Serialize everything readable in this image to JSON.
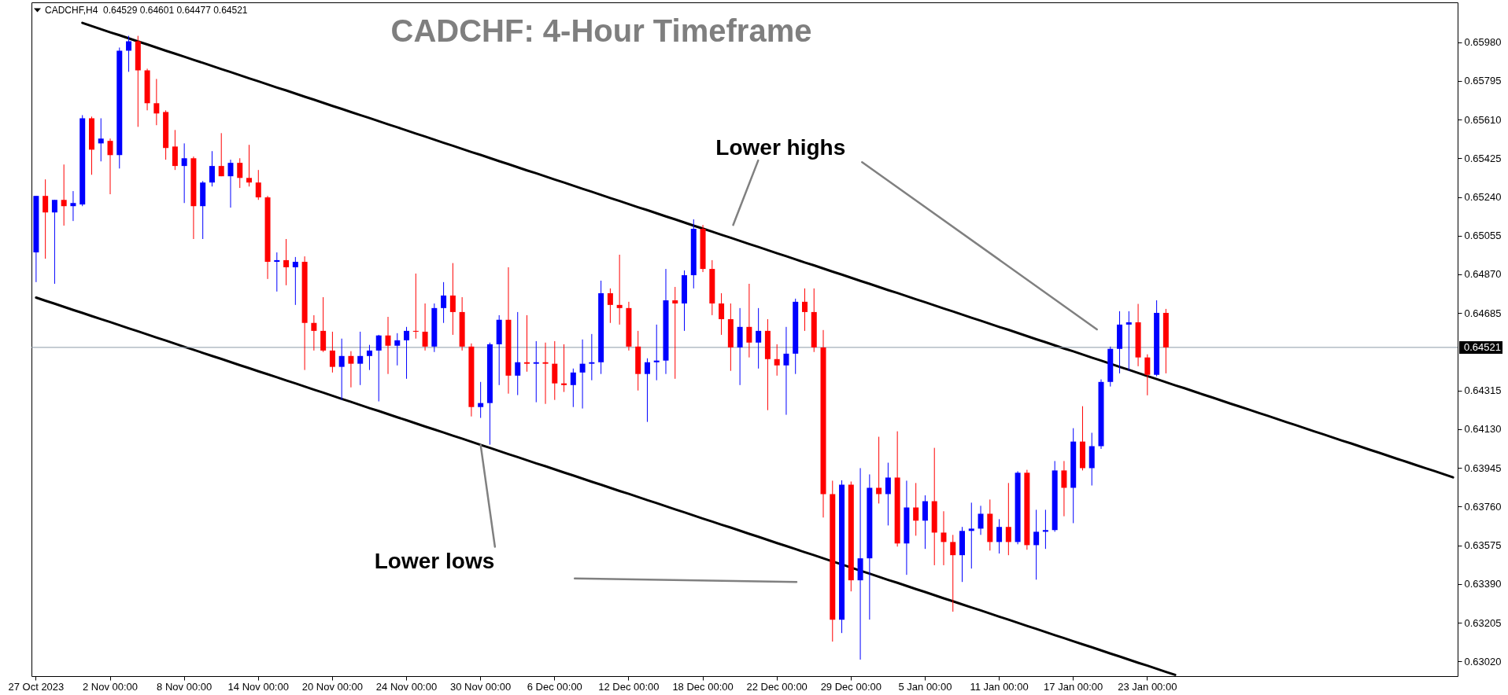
{
  "chart_data": {
    "type": "candlestick",
    "title": "CADCHF: 4-Hour Timeframe",
    "annotations": [
      "CADCHF,H4  0.64529 0.64601 0.64477 0.64521",
      "Lower highs",
      {
        "text": "Lower lows",
        "x": "30 Nov 00:00",
        "y": 0.64055
      }
    ],
    "categories": [
      "27 Oct 2023",
      null,
      null,
      null,
      null,
      null,
      null,
      null,
      "2 Nov 00:00",
      null,
      null,
      null,
      null,
      null,
      null,
      null,
      "8 Nov 00:00",
      null,
      null,
      null,
      null,
      null,
      null,
      null,
      "14 Nov 00:00",
      null,
      null,
      null,
      null,
      null,
      null,
      null,
      "20 Nov 00:00",
      null,
      null,
      null,
      null,
      null,
      null,
      null,
      "24 Nov 00:00",
      null,
      null,
      null,
      null,
      null,
      null,
      null,
      "30 Nov 00:00",
      null,
      null,
      null,
      null,
      null,
      null,
      null,
      "6 Dec 00:00",
      null,
      null,
      null,
      null,
      null,
      null,
      null,
      "12 Dec 00:00",
      null,
      null,
      null,
      null,
      null,
      null,
      null,
      "18 Dec 00:00",
      null,
      null,
      null,
      null,
      null,
      null,
      null,
      "22 Dec 00:00",
      null,
      null,
      null,
      null,
      null,
      null,
      null,
      "29 Dec 00:00",
      null,
      null,
      null,
      null,
      null,
      null,
      null,
      "5 Jan 00:00",
      null,
      null,
      null,
      null,
      null,
      null,
      null,
      "11 Jan 00:00",
      null,
      null,
      null,
      null,
      null,
      null,
      null,
      "17 Jan 00:00",
      null,
      null,
      null,
      null,
      null,
      null,
      null,
      "23 Jan 00:00",
      null,
      null,
      null,
      null,
      null,
      null,
      null,
      null,
      null,
      null,
      null,
      null,
      null,
      null,
      null,
      null,
      null,
      null,
      null,
      null,
      null,
      null,
      null,
      null,
      null,
      null,
      null,
      null,
      null,
      null,
      null,
      null,
      null
    ],
    "ohlc": [
      [
        0.64975,
        0.65245,
        0.64833,
        0.65245
      ],
      [
        0.65245,
        0.65324,
        0.64945,
        0.65166
      ],
      [
        0.65166,
        0.65226,
        0.64825,
        0.65226
      ],
      [
        0.65226,
        0.65395,
        0.65103,
        0.65196
      ],
      [
        0.65196,
        0.65268,
        0.65125,
        0.65211
      ],
      [
        0.65204,
        0.65631,
        0.65196,
        0.65616
      ],
      [
        0.65616,
        0.65624,
        0.65346,
        0.65466
      ],
      [
        0.65496,
        0.65616,
        0.6541,
        0.65519
      ],
      [
        0.65508,
        0.65519,
        0.65253,
        0.6544
      ],
      [
        0.6544,
        0.65954,
        0.65376,
        0.65939
      ],
      [
        0.65939,
        0.6601,
        0.65838,
        0.65984
      ],
      [
        0.65984,
        0.6601,
        0.65575,
        0.65845
      ],
      [
        0.65845,
        0.65853,
        0.65654,
        0.65688
      ],
      [
        0.65688,
        0.65804,
        0.65583,
        0.65639
      ],
      [
        0.65646,
        0.65654,
        0.65418,
        0.65474
      ],
      [
        0.65481,
        0.6556,
        0.65369,
        0.65388
      ],
      [
        0.65388,
        0.65496,
        0.65211,
        0.65425
      ],
      [
        0.65425,
        0.65433,
        0.65039,
        0.65196
      ],
      [
        0.65196,
        0.65316,
        0.65039,
        0.65309
      ],
      [
        0.65309,
        0.65459,
        0.6529,
        0.65388
      ],
      [
        0.65388,
        0.65545,
        0.65339,
        0.65339
      ],
      [
        0.65339,
        0.65418,
        0.65189,
        0.65403
      ],
      [
        0.65403,
        0.65425,
        0.65283,
        0.65331
      ],
      [
        0.65331,
        0.65489,
        0.6529,
        0.65309
      ],
      [
        0.65309,
        0.65369,
        0.65226,
        0.65238
      ],
      [
        0.65238,
        0.65245,
        0.64848,
        0.6493
      ],
      [
        0.6493,
        0.64975,
        0.64788,
        0.64938
      ],
      [
        0.64938,
        0.65039,
        0.64818,
        0.64904
      ],
      [
        0.64904,
        0.64953,
        0.64724,
        0.6493
      ],
      [
        0.6493,
        0.64956,
        0.64413,
        0.64638
      ],
      [
        0.64638,
        0.64675,
        0.64506,
        0.646
      ],
      [
        0.646,
        0.64761,
        0.64499,
        0.64506
      ],
      [
        0.64506,
        0.64596,
        0.64401,
        0.64428
      ],
      [
        0.64428,
        0.64563,
        0.6427,
        0.6448
      ],
      [
        0.6448,
        0.64503,
        0.6433,
        0.64443
      ],
      [
        0.64443,
        0.64596,
        0.64341,
        0.6448
      ],
      [
        0.6448,
        0.64533,
        0.64413,
        0.64506
      ],
      [
        0.64506,
        0.64581,
        0.64263,
        0.64578
      ],
      [
        0.64578,
        0.64667,
        0.64394,
        0.64529
      ],
      [
        0.64529,
        0.64589,
        0.64435,
        0.64555
      ],
      [
        0.64555,
        0.64619,
        0.64371,
        0.646
      ],
      [
        0.646,
        0.64874,
        0.64563,
        0.64596
      ],
      [
        0.64596,
        0.64731,
        0.64506,
        0.64525
      ],
      [
        0.64525,
        0.64731,
        0.64499,
        0.64709
      ],
      [
        0.64709,
        0.64833,
        0.64638,
        0.64769
      ],
      [
        0.64769,
        0.64924,
        0.64581,
        0.6469
      ],
      [
        0.6469,
        0.64761,
        0.64506,
        0.64525
      ],
      [
        0.64525,
        0.6454,
        0.64191,
        0.64236
      ],
      [
        0.64236,
        0.64356,
        0.64184,
        0.64255
      ],
      [
        0.64255,
        0.64544,
        0.64056,
        0.64536
      ],
      [
        0.64536,
        0.64675,
        0.64341,
        0.64653
      ],
      [
        0.64653,
        0.64904,
        0.643,
        0.64386
      ],
      [
        0.64386,
        0.6469,
        0.64293,
        0.6445
      ],
      [
        0.6445,
        0.64675,
        0.64405,
        0.64443
      ],
      [
        0.64443,
        0.64551,
        0.64259,
        0.6445
      ],
      [
        0.6445,
        0.64544,
        0.64251,
        0.64443
      ],
      [
        0.64443,
        0.64551,
        0.6427,
        0.64349
      ],
      [
        0.64349,
        0.64536,
        0.64308,
        0.64341
      ],
      [
        0.64341,
        0.6442,
        0.64236,
        0.64401
      ],
      [
        0.64401,
        0.64559,
        0.64229,
        0.64443
      ],
      [
        0.64443,
        0.64585,
        0.64364,
        0.6445
      ],
      [
        0.6445,
        0.6484,
        0.64394,
        0.6478
      ],
      [
        0.6478,
        0.64803,
        0.64638,
        0.64724
      ],
      [
        0.64724,
        0.64964,
        0.6463,
        0.64709
      ],
      [
        0.64709,
        0.64739,
        0.64506,
        0.64525
      ],
      [
        0.64525,
        0.646,
        0.64315,
        0.64394
      ],
      [
        0.64394,
        0.64469,
        0.64165,
        0.6445
      ],
      [
        0.6445,
        0.6463,
        0.64364,
        0.64458
      ],
      [
        0.64458,
        0.64896,
        0.64394,
        0.64746
      ],
      [
        0.64746,
        0.6481,
        0.64371,
        0.64731
      ],
      [
        0.64731,
        0.64889,
        0.646,
        0.64866
      ],
      [
        0.64866,
        0.65133,
        0.64803,
        0.65088
      ],
      [
        0.65088,
        0.65106,
        0.64881,
        0.64896
      ],
      [
        0.64896,
        0.64938,
        0.64675,
        0.64731
      ],
      [
        0.64731,
        0.6478,
        0.64581,
        0.64656
      ],
      [
        0.64656,
        0.64731,
        0.64409,
        0.64521
      ],
      [
        0.64521,
        0.64709,
        0.64341,
        0.64619
      ],
      [
        0.64619,
        0.64825,
        0.64473,
        0.64544
      ],
      [
        0.64544,
        0.64709,
        0.6442,
        0.646
      ],
      [
        0.646,
        0.64656,
        0.64221,
        0.64465
      ],
      [
        0.64465,
        0.64536,
        0.64386,
        0.64435
      ],
      [
        0.64435,
        0.64619,
        0.64199,
        0.64491
      ],
      [
        0.64491,
        0.64754,
        0.64394,
        0.64739
      ],
      [
        0.64739,
        0.64803,
        0.646,
        0.6469
      ],
      [
        0.6469,
        0.64803,
        0.64499,
        0.64521
      ],
      [
        0.64521,
        0.64604,
        0.63708,
        0.6382
      ],
      [
        0.6382,
        0.63884,
        0.63115,
        0.6322
      ],
      [
        0.6322,
        0.63886,
        0.63156,
        0.63865
      ],
      [
        0.63865,
        0.6388,
        0.63355,
        0.63408
      ],
      [
        0.63408,
        0.63944,
        0.63029,
        0.63513
      ],
      [
        0.63513,
        0.63914,
        0.6322,
        0.6385
      ],
      [
        0.6385,
        0.64094,
        0.63775,
        0.6382
      ],
      [
        0.6382,
        0.6397,
        0.6367,
        0.63899
      ],
      [
        0.63899,
        0.6412,
        0.63569,
        0.63584
      ],
      [
        0.63584,
        0.63884,
        0.63434,
        0.63756
      ],
      [
        0.63756,
        0.63873,
        0.63621,
        0.63693
      ],
      [
        0.63693,
        0.63814,
        0.63558,
        0.63786
      ],
      [
        0.63786,
        0.64041,
        0.6348,
        0.63636
      ],
      [
        0.63636,
        0.63738,
        0.6348,
        0.63591
      ],
      [
        0.63591,
        0.63625,
        0.63258,
        0.63528
      ],
      [
        0.63528,
        0.63663,
        0.634,
        0.63644
      ],
      [
        0.63644,
        0.63779,
        0.63464,
        0.63655
      ],
      [
        0.63655,
        0.63764,
        0.63625,
        0.63726
      ],
      [
        0.63726,
        0.63794,
        0.6355,
        0.63591
      ],
      [
        0.63591,
        0.637,
        0.63536,
        0.63663
      ],
      [
        0.63663,
        0.63873,
        0.63528,
        0.63591
      ],
      [
        0.63591,
        0.63929,
        0.6358,
        0.63922
      ],
      [
        0.63922,
        0.63936,
        0.63554,
        0.63576
      ],
      [
        0.63576,
        0.63745,
        0.63411,
        0.6364
      ],
      [
        0.6364,
        0.63745,
        0.63558,
        0.63648
      ],
      [
        0.63648,
        0.63978,
        0.6364,
        0.63933
      ],
      [
        0.63933,
        0.63978,
        0.63714,
        0.6385
      ],
      [
        0.6385,
        0.64135,
        0.63681,
        0.64071
      ],
      [
        0.64071,
        0.6424,
        0.63933,
        0.63944
      ],
      [
        0.63944,
        0.64113,
        0.63861,
        0.64049
      ],
      [
        0.64049,
        0.64368,
        0.64036,
        0.64356
      ],
      [
        0.64356,
        0.64525,
        0.64334,
        0.64514
      ],
      [
        0.64514,
        0.64694,
        0.64397,
        0.6463
      ],
      [
        0.6463,
        0.64694,
        0.64409,
        0.64641
      ],
      [
        0.64641,
        0.64729,
        0.64431,
        0.64473
      ],
      [
        0.64473,
        0.64488,
        0.64292,
        0.6439
      ],
      [
        0.6439,
        0.64746,
        0.64383,
        0.64686
      ],
      [
        0.64686,
        0.64705,
        0.64397,
        0.64521
      ],
      null,
      null,
      null,
      null,
      null,
      null,
      null,
      null,
      null,
      null,
      null,
      null,
      null,
      null,
      null,
      null,
      null,
      null,
      null,
      null,
      null,
      null,
      null,
      null,
      null,
      null,
      null,
      null,
      null,
      null,
      null
    ],
    "colors": [
      "#0000ff",
      "#ff0000",
      "#0000ff",
      "#ff0000",
      "#0000ff",
      "#0000ff",
      "#ff0000",
      "#0000ff",
      "#ff0000",
      "#0000ff",
      "#0000ff",
      "#ff0000",
      "#ff0000",
      "#ff0000",
      "#ff0000",
      "#ff0000",
      "#0000ff",
      "#ff0000",
      "#0000ff",
      "#0000ff",
      "#ff0000",
      "#0000ff",
      "#ff0000",
      "#ff0000",
      "#ff0000",
      "#ff0000",
      "#0000ff",
      "#ff0000",
      "#0000ff",
      "#ff0000",
      "#ff0000",
      "#ff0000",
      "#ff0000",
      "#0000ff",
      "#ff0000",
      "#0000ff",
      "#0000ff",
      "#0000ff",
      "#ff0000",
      "#0000ff",
      "#0000ff",
      "#ff0000",
      "#ff0000",
      "#0000ff",
      "#0000ff",
      "#ff0000",
      "#ff0000",
      "#ff0000",
      "#0000ff",
      "#0000ff",
      "#0000ff",
      "#ff0000",
      "#0000ff",
      "#ff0000",
      "#0000ff",
      "#ff0000",
      "#ff0000",
      "#ff0000",
      "#0000ff",
      "#0000ff",
      "#0000ff",
      "#0000ff",
      "#ff0000",
      "#ff0000",
      "#ff0000",
      "#ff0000",
      "#0000ff",
      "#0000ff",
      "#0000ff",
      "#ff0000",
      "#0000ff",
      "#0000ff",
      "#ff0000",
      "#ff0000",
      "#ff0000",
      "#ff0000",
      "#0000ff",
      "#ff0000",
      "#0000ff",
      "#ff0000",
      "#ff0000",
      "#0000ff",
      "#0000ff",
      "#ff0000",
      "#ff0000",
      "#ff0000",
      "#ff0000",
      "#0000ff",
      "#ff0000",
      "#0000ff",
      "#0000ff",
      "#ff0000",
      "#0000ff",
      "#ff0000",
      "#0000ff",
      "#ff0000",
      "#0000ff",
      "#ff0000",
      "#ff0000",
      "#ff0000",
      "#0000ff",
      "#0000ff",
      "#0000ff",
      "#ff0000",
      "#0000ff",
      "#ff0000",
      "#0000ff",
      "#ff0000",
      "#0000ff",
      "#0000ff",
      "#0000ff",
      "#ff0000",
      "#0000ff",
      "#ff0000",
      "#0000ff",
      "#0000ff",
      "#0000ff",
      "#0000ff",
      "#0000ff",
      "#ff0000",
      "#ff0000",
      "#0000ff",
      "#ff0000",
      null,
      null,
      null,
      null,
      null,
      null,
      null,
      null,
      null,
      null,
      null,
      null,
      null,
      null,
      null,
      null,
      null,
      null,
      null,
      null,
      null,
      null,
      null,
      null,
      null,
      null,
      null,
      null,
      null,
      null,
      null
    ],
    "series": [
      {
        "type": "line",
        "color": "#000000",
        "values": [
          null,
          null,
          null,
          null,
          null,
          0.66072,
          0.66057,
          0.66042,
          0.66027,
          0.66013,
          0.65998,
          0.65983,
          0.65969,
          0.65954,
          0.65939,
          0.65925,
          0.6591,
          0.65895,
          0.65881,
          0.65866,
          0.65851,
          0.65837,
          0.65822,
          0.65807,
          0.65793,
          0.65778,
          0.65763,
          0.65749,
          0.65734,
          0.65719,
          0.65705,
          0.6569,
          0.65675,
          0.65661,
          0.65646,
          0.65631,
          0.65617,
          0.65602,
          0.65587,
          0.65573,
          0.65558,
          0.65543,
          0.65529,
          0.65514,
          0.65499,
          0.65485,
          0.6547,
          0.65455,
          0.65441,
          0.65426,
          0.65411,
          0.65397,
          0.65382,
          0.65367,
          0.65353,
          0.65338,
          0.65323,
          0.65309,
          0.65294,
          0.65279,
          0.65265,
          0.6525,
          0.65235,
          0.65221,
          0.65206,
          0.65191,
          0.65177,
          0.65162,
          0.65147,
          0.65133,
          0.65118,
          0.65103,
          0.65089,
          0.65074,
          0.65059,
          0.65045,
          0.6503,
          0.65015,
          0.65001,
          0.64986,
          0.64971,
          0.64957,
          0.64942,
          0.64927,
          0.64913,
          0.64898,
          0.64883,
          0.64869,
          0.64854,
          0.64839,
          0.64825,
          0.6481,
          0.64795,
          0.64781,
          0.64766,
          0.64751,
          0.64737,
          0.64722,
          0.64707,
          0.64693,
          0.64678,
          0.64663,
          0.64649,
          0.64634,
          0.64619,
          0.64605,
          0.6459,
          0.64575,
          0.6456,
          0.64546,
          0.64531,
          0.64516,
          0.64502,
          0.64487,
          0.64472,
          0.64458,
          0.64443,
          0.64428,
          0.64414,
          0.64399,
          0.64384,
          0.6437,
          0.64355,
          0.6434,
          0.64326,
          0.64311,
          0.64296,
          0.64282,
          0.64267,
          0.64252,
          0.64238,
          0.64223,
          0.64208,
          0.64194,
          0.64179,
          0.64164,
          0.6415,
          0.64135,
          0.6412,
          0.64106,
          0.64091,
          0.64076,
          0.64062,
          0.64047,
          0.64032,
          0.64018,
          0.64003,
          0.63988,
          0.63974,
          0.63959,
          0.63944,
          0.6393,
          0.63915,
          0.639
        ]
      },
      {
        "type": "line",
        "color": "#000000",
        "values": [
          0.64759,
          0.64744,
          0.6473,
          0.64715,
          0.647,
          0.64686,
          0.64671,
          0.64656,
          0.64642,
          0.64627,
          0.64612,
          0.64598,
          0.64583,
          0.64568,
          0.64554,
          0.64539,
          0.64524,
          0.6451,
          0.64495,
          0.6448,
          0.64466,
          0.64451,
          0.64436,
          0.64422,
          0.64407,
          0.64393,
          0.64378,
          0.64363,
          0.64349,
          0.64334,
          0.64319,
          0.64305,
          0.6429,
          0.64275,
          0.64261,
          0.64246,
          0.64231,
          0.64217,
          0.64202,
          0.64187,
          0.64173,
          0.64158,
          0.64143,
          0.64129,
          0.64114,
          0.64099,
          0.64085,
          0.6407,
          0.64055,
          0.64041,
          0.64026,
          0.64011,
          0.63997,
          0.63982,
          0.63967,
          0.63953,
          0.63938,
          0.63923,
          0.63909,
          0.63894,
          0.63879,
          0.63865,
          0.6385,
          0.63835,
          0.63821,
          0.63806,
          0.63791,
          0.63777,
          0.63762,
          0.63747,
          0.63733,
          0.63718,
          0.63703,
          0.63689,
          0.63674,
          0.6366,
          0.63645,
          0.6363,
          0.63616,
          0.63601,
          0.63586,
          0.63572,
          0.63557,
          0.63542,
          0.63528,
          0.63513,
          0.63498,
          0.63484,
          0.63469,
          0.63454,
          0.6344,
          0.63425,
          0.6341,
          0.63396,
          0.63381,
          0.63366,
          0.63352,
          0.63337,
          0.63322,
          0.63308,
          0.63293,
          0.63278,
          0.63264,
          0.63249,
          0.63234,
          0.6322,
          0.63205,
          0.6319,
          0.63176,
          0.63161,
          0.63146,
          0.63132,
          0.63117,
          0.63102,
          0.63088,
          0.63073,
          0.63058,
          0.63044,
          0.63029,
          0.63014,
          0.63,
          0.62985,
          0.6297,
          0.62956,
          null,
          null,
          null,
          null,
          null,
          null,
          null,
          null,
          null,
          null,
          null,
          null,
          null,
          null,
          null,
          null,
          null,
          null,
          null,
          null,
          null,
          null,
          null,
          null,
          null,
          null,
          null,
          null,
          null,
          null
        ]
      }
    ],
    "ylim": [
      0.6295,
      0.6617
    ],
    "yticks": [
      {
        "value": 0.6302,
        "label": "0.63020"
      },
      0.63205,
      {
        "value": 0.6339,
        "label": "0.63390"
      },
      0.63575,
      {
        "value": 0.6376,
        "label": "0.63760"
      },
      0.63945,
      {
        "value": 0.6413,
        "label": "0.64130"
      },
      0.64315,
      0.64685,
      {
        "value": 0.6487,
        "label": "0.64870"
      },
      0.65055,
      {
        "value": 0.6524,
        "label": "0.65240"
      },
      0.65425,
      {
        "value": 0.6561,
        "label": "0.65610"
      },
      0.65795,
      {
        "value": 0.6598,
        "label": "0.65980"
      }
    ],
    "ref_lines": [
      {
        "axis": "y",
        "value": 0.64521,
        "label": "0.64521",
        "color": "#8c9aa8"
      }
    ],
    "grid": false
  }
}
